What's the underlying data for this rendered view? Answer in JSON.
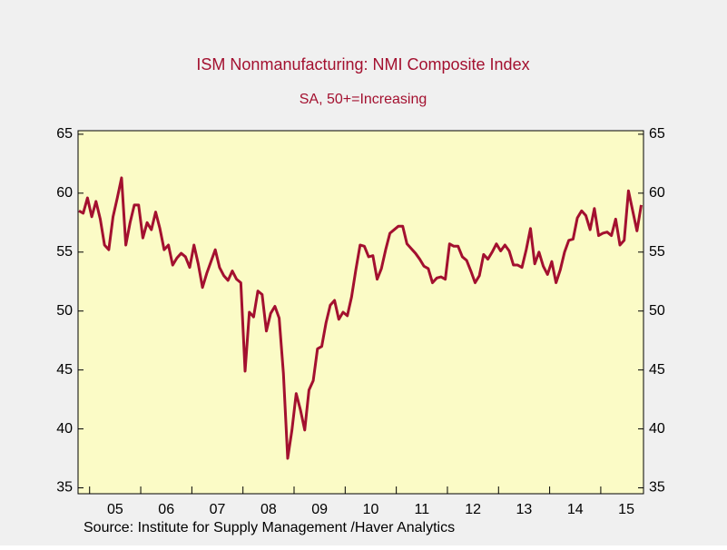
{
  "chart_data": {
    "type": "line",
    "title": "ISM Nonmanufacturing: NMI Composite Index",
    "subtitle": "SA, 50+=Increasing",
    "source": "Source:  Institute for Supply Management /Haver Analytics",
    "categories": [
      null,
      null,
      null,
      null,
      null,
      null,
      null,
      null,
      "05",
      null,
      null,
      null,
      null,
      null,
      null,
      null,
      null,
      null,
      null,
      null,
      "06",
      null,
      null,
      null,
      null,
      null,
      null,
      null,
      null,
      null,
      null,
      null,
      "07",
      null,
      null,
      null,
      null,
      null,
      null,
      null,
      null,
      null,
      null,
      null,
      "08",
      null,
      null,
      null,
      null,
      null,
      null,
      null,
      null,
      null,
      null,
      null,
      "09",
      null,
      null,
      null,
      null,
      null,
      null,
      null,
      null,
      null,
      null,
      null,
      "10",
      null,
      null,
      null,
      null,
      null,
      null,
      null,
      null,
      null,
      null,
      null,
      "11",
      null,
      null,
      null,
      null,
      null,
      null,
      null,
      null,
      null,
      null,
      null,
      "12",
      null,
      null,
      null,
      null,
      null,
      null,
      null,
      null,
      null,
      null,
      null,
      "13",
      null,
      null,
      null,
      null,
      null,
      null,
      null,
      null,
      null,
      null,
      null,
      "14",
      null,
      null,
      null,
      null,
      null,
      null,
      null,
      null,
      null,
      null,
      null,
      "15",
      null,
      null,
      null,
      null
    ],
    "series": [
      {
        "name": "NMI Composite Index",
        "color": "#a3102f",
        "values": [
          58.5,
          58.3,
          59.6,
          58.0,
          59.3,
          57.8,
          55.6,
          55.2,
          58.0,
          59.6,
          61.3,
          55.6,
          57.5,
          59.0,
          59.0,
          56.2,
          57.5,
          56.9,
          58.4,
          57.0,
          55.2,
          55.6,
          53.9,
          54.5,
          54.9,
          54.6,
          53.7,
          55.6,
          54.0,
          52.0,
          53.2,
          54.2,
          55.2,
          53.7,
          53.0,
          52.6,
          53.4,
          52.7,
          52.4,
          44.9,
          49.9,
          49.5,
          51.7,
          51.4,
          48.3,
          49.8,
          50.4,
          49.4,
          44.7,
          37.5,
          39.9,
          43.0,
          41.6,
          39.9,
          43.3,
          44.1,
          46.8,
          47.0,
          49.0,
          50.5,
          50.9,
          49.3,
          49.9,
          49.6,
          51.2,
          53.5,
          55.6,
          55.5,
          54.6,
          54.7,
          52.7,
          53.6,
          55.2,
          56.6,
          56.9,
          57.2,
          57.2,
          55.7,
          55.3,
          54.9,
          54.4,
          53.8,
          53.6,
          52.4,
          52.8,
          52.9,
          52.7,
          55.7,
          55.5,
          55.5,
          54.6,
          54.3,
          53.4,
          52.4,
          53.0,
          54.8,
          54.4,
          55.0,
          55.7,
          55.1,
          55.6,
          55.1,
          53.9,
          53.9,
          53.7,
          55.2,
          57.0,
          54.0,
          55.0,
          53.8,
          53.1,
          54.2,
          52.4,
          53.5,
          55.0,
          56.0,
          56.1,
          57.9,
          58.5,
          58.1,
          56.9,
          58.7,
          56.4,
          56.6,
          56.7,
          56.4,
          57.8,
          55.6,
          56.0,
          60.2,
          58.5,
          56.8,
          59.0
        ]
      }
    ],
    "ylim": [
      34.5,
      65.3
    ],
    "yticks": [
      35,
      40,
      45,
      50,
      55,
      60,
      65
    ],
    "plot_background": "#fbfbc6",
    "background": "#f0f0f0"
  }
}
